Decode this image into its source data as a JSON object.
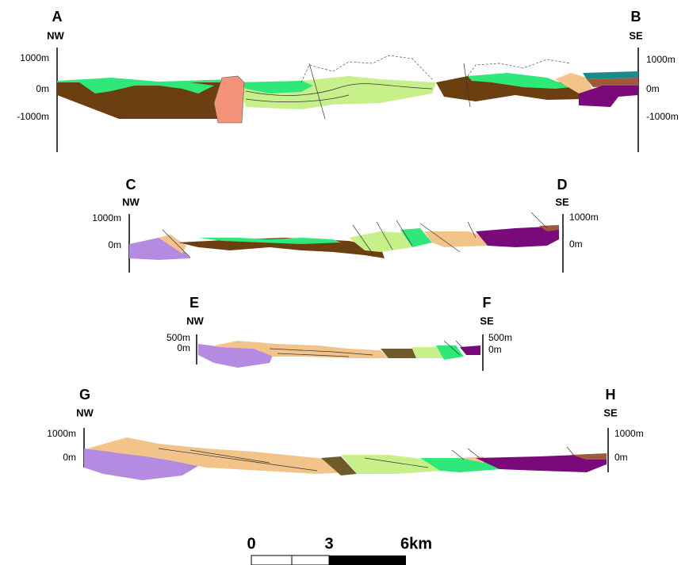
{
  "sections": [
    {
      "start": "A",
      "end": "B",
      "left_dir": "NW",
      "right_dir": "SE",
      "left_ticks": [
        "1000m",
        "0m",
        "-1000m"
      ],
      "right_ticks": [
        "1000m",
        "0m",
        "-1000m"
      ]
    },
    {
      "start": "C",
      "end": "D",
      "left_dir": "NW",
      "right_dir": "SE",
      "left_ticks": [
        "1000m",
        "0m"
      ],
      "right_ticks": [
        "1000m",
        "0m"
      ]
    },
    {
      "start": "E",
      "end": "F",
      "left_dir": "NW",
      "right_dir": "SE",
      "left_ticks": [
        "500m",
        "0m"
      ],
      "right_ticks": [
        "500m",
        "0m"
      ]
    },
    {
      "start": "G",
      "end": "H",
      "left_dir": "NW",
      "right_dir": "SE",
      "left_ticks": [
        "1000m",
        "0m"
      ],
      "right_ticks": [
        "1000m",
        "0m"
      ]
    }
  ],
  "scale_bar": {
    "labels": [
      "0",
      "3",
      "6km"
    ]
  }
}
